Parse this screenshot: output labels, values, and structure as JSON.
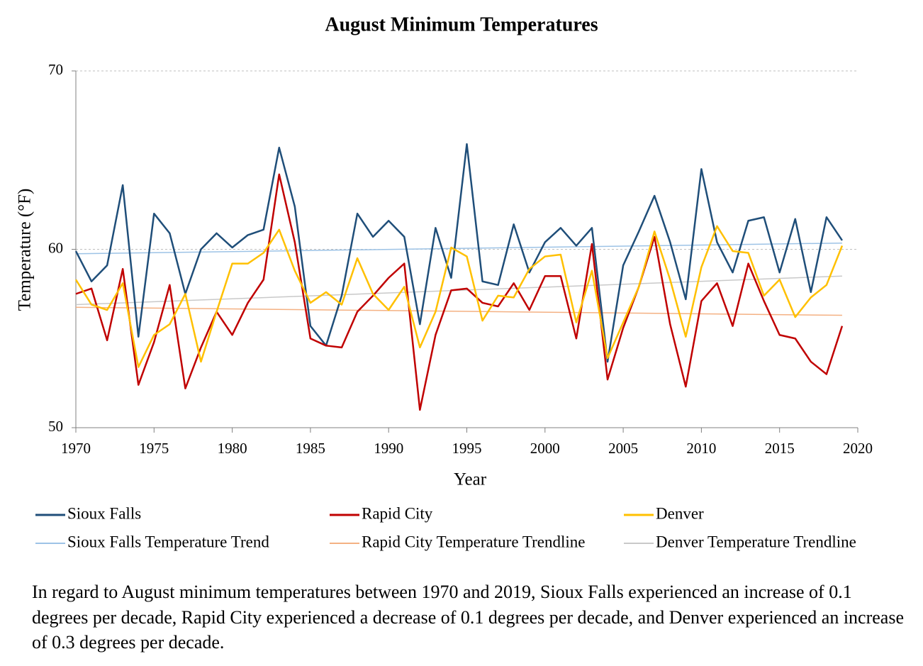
{
  "chart_data": {
    "type": "line",
    "title": "August Minimum Temperatures",
    "xlabel": "Year",
    "ylabel": "Temperature (°F)",
    "x": [
      1970,
      1971,
      1972,
      1973,
      1974,
      1975,
      1976,
      1977,
      1978,
      1979,
      1980,
      1981,
      1982,
      1983,
      1984,
      1985,
      1986,
      1987,
      1988,
      1989,
      1990,
      1991,
      1992,
      1993,
      1994,
      1995,
      1996,
      1997,
      1998,
      1999,
      2000,
      2001,
      2002,
      2003,
      2004,
      2005,
      2006,
      2007,
      2008,
      2009,
      2010,
      2011,
      2012,
      2013,
      2014,
      2015,
      2016,
      2017,
      2018,
      2019
    ],
    "series": [
      {
        "name": "Sioux Falls",
        "color": "#1f4e79",
        "width": 2.5,
        "values": [
          59.9,
          58.2,
          59.1,
          63.6,
          55.1,
          62.0,
          60.9,
          57.5,
          60.0,
          60.9,
          60.1,
          60.8,
          61.1,
          65.7,
          62.4,
          55.7,
          54.6,
          57.4,
          62.0,
          60.7,
          61.6,
          60.7,
          55.8,
          61.2,
          58.4,
          65.9,
          58.2,
          58.0,
          61.4,
          58.7,
          60.4,
          61.2,
          60.2,
          61.2,
          53.7,
          59.1,
          61.0,
          63.0,
          60.4,
          57.2,
          64.5,
          60.4,
          58.7,
          61.6,
          61.8,
          58.7,
          61.7,
          57.6,
          61.8,
          60.5
        ]
      },
      {
        "name": "Rapid City",
        "color": "#c00000",
        "width": 2.5,
        "values": [
          57.5,
          57.8,
          54.9,
          58.9,
          52.4,
          54.8,
          58.0,
          52.2,
          54.5,
          56.5,
          55.2,
          57.0,
          58.3,
          64.2,
          60.4,
          55.0,
          54.6,
          54.5,
          56.5,
          57.4,
          58.4,
          59.2,
          51.0,
          55.2,
          57.7,
          57.8,
          57.0,
          56.8,
          58.1,
          56.6,
          58.5,
          58.5,
          55.0,
          60.3,
          52.7,
          55.6,
          57.9,
          60.7,
          55.8,
          52.3,
          57.1,
          58.1,
          55.7,
          59.2,
          57.1,
          55.2,
          55.0,
          53.7,
          53.0,
          55.7
        ]
      },
      {
        "name": "Denver",
        "color": "#ffc000",
        "width": 2.5,
        "values": [
          58.3,
          56.9,
          56.6,
          58.1,
          53.4,
          55.2,
          55.8,
          57.5,
          53.7,
          56.5,
          59.2,
          59.2,
          59.8,
          61.1,
          58.8,
          57.0,
          57.6,
          56.9,
          59.5,
          57.5,
          56.6,
          57.9,
          54.5,
          56.5,
          60.1,
          59.6,
          56.0,
          57.4,
          57.3,
          58.9,
          59.6,
          59.7,
          55.9,
          58.8,
          53.9,
          55.9,
          57.9,
          61.0,
          58.3,
          55.1,
          59.0,
          61.3,
          59.9,
          59.8,
          57.4,
          58.3,
          56.2,
          57.3,
          58.0,
          60.2
        ]
      },
      {
        "name": "Sioux Falls Temperature Trend",
        "color": "#9dc3e6",
        "width": 1.5,
        "x": [
          1970,
          2019
        ],
        "values": [
          59.75,
          60.35
        ]
      },
      {
        "name": "Rapid City Temperature Trendline",
        "color": "#f4b183",
        "width": 1.5,
        "x": [
          1970,
          2019
        ],
        "values": [
          56.75,
          56.3
        ]
      },
      {
        "name": "Denver Temperature Trendline",
        "color": "#c9c9c9",
        "width": 1.5,
        "x": [
          1970,
          2019
        ],
        "values": [
          56.9,
          58.5
        ]
      }
    ],
    "xlim": [
      1970,
      2020
    ],
    "xticks": [
      1970,
      1975,
      1980,
      1985,
      1990,
      1995,
      2000,
      2005,
      2010,
      2015,
      2020
    ],
    "ylim": [
      50,
      70
    ],
    "yticks": [
      50,
      60,
      70
    ],
    "grid": true,
    "legend": "bottom"
  },
  "caption": "In regard to August minimum temperatures between 1970 and 2019, Sioux Falls experienced an increase of 0.1 degrees per decade, Rapid City experienced a decrease of 0.1 degrees per decade, and Denver experienced an increase of 0.3 degrees per decade."
}
